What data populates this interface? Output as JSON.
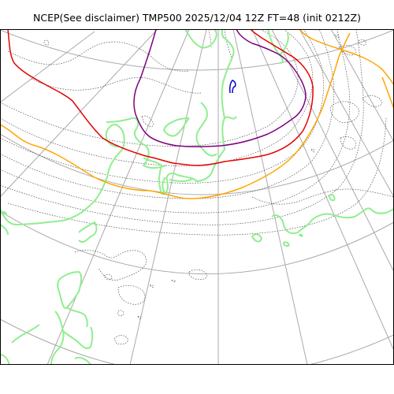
{
  "title": "NCEP(See disclaimer) TMP500 2025/12/04 12Z FT=48 (init 0212Z)",
  "colors": {
    "frame": "#000000",
    "graticule": "#aaaaaa",
    "coastline": "#90ee90",
    "isotherm_dotted": "#555555",
    "isotherm_orange": "#ffa500",
    "isotherm_red": "#e60000",
    "isotherm_purple": "#800080",
    "isotherm_blue": "#0000cc"
  },
  "layers": [
    "graticule",
    "coastline",
    "isotherms"
  ]
}
